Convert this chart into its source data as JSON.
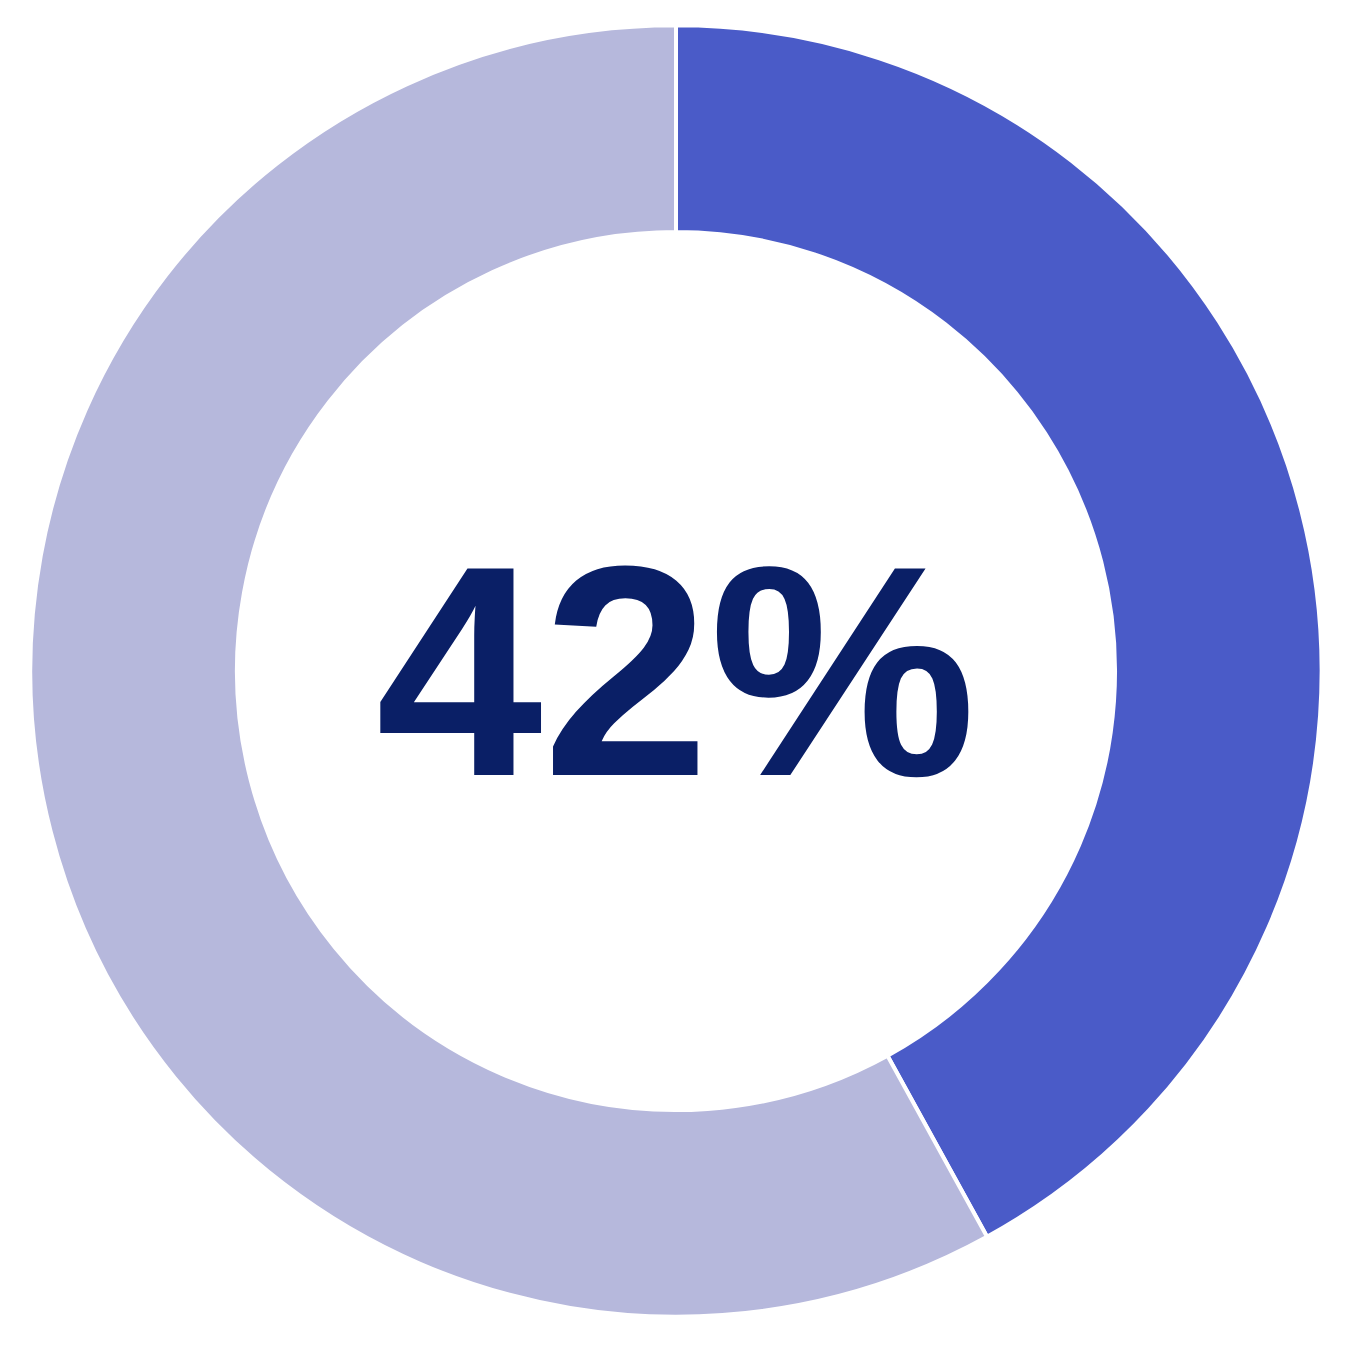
{
  "chart_data": {
    "type": "donut",
    "categories": [
      null,
      null
    ],
    "values": [
      42,
      58
    ],
    "colors": [
      "#4a5bc8",
      "#b6b8dc"
    ],
    "value_labels": [
      "42%",
      null
    ]
  }
}
